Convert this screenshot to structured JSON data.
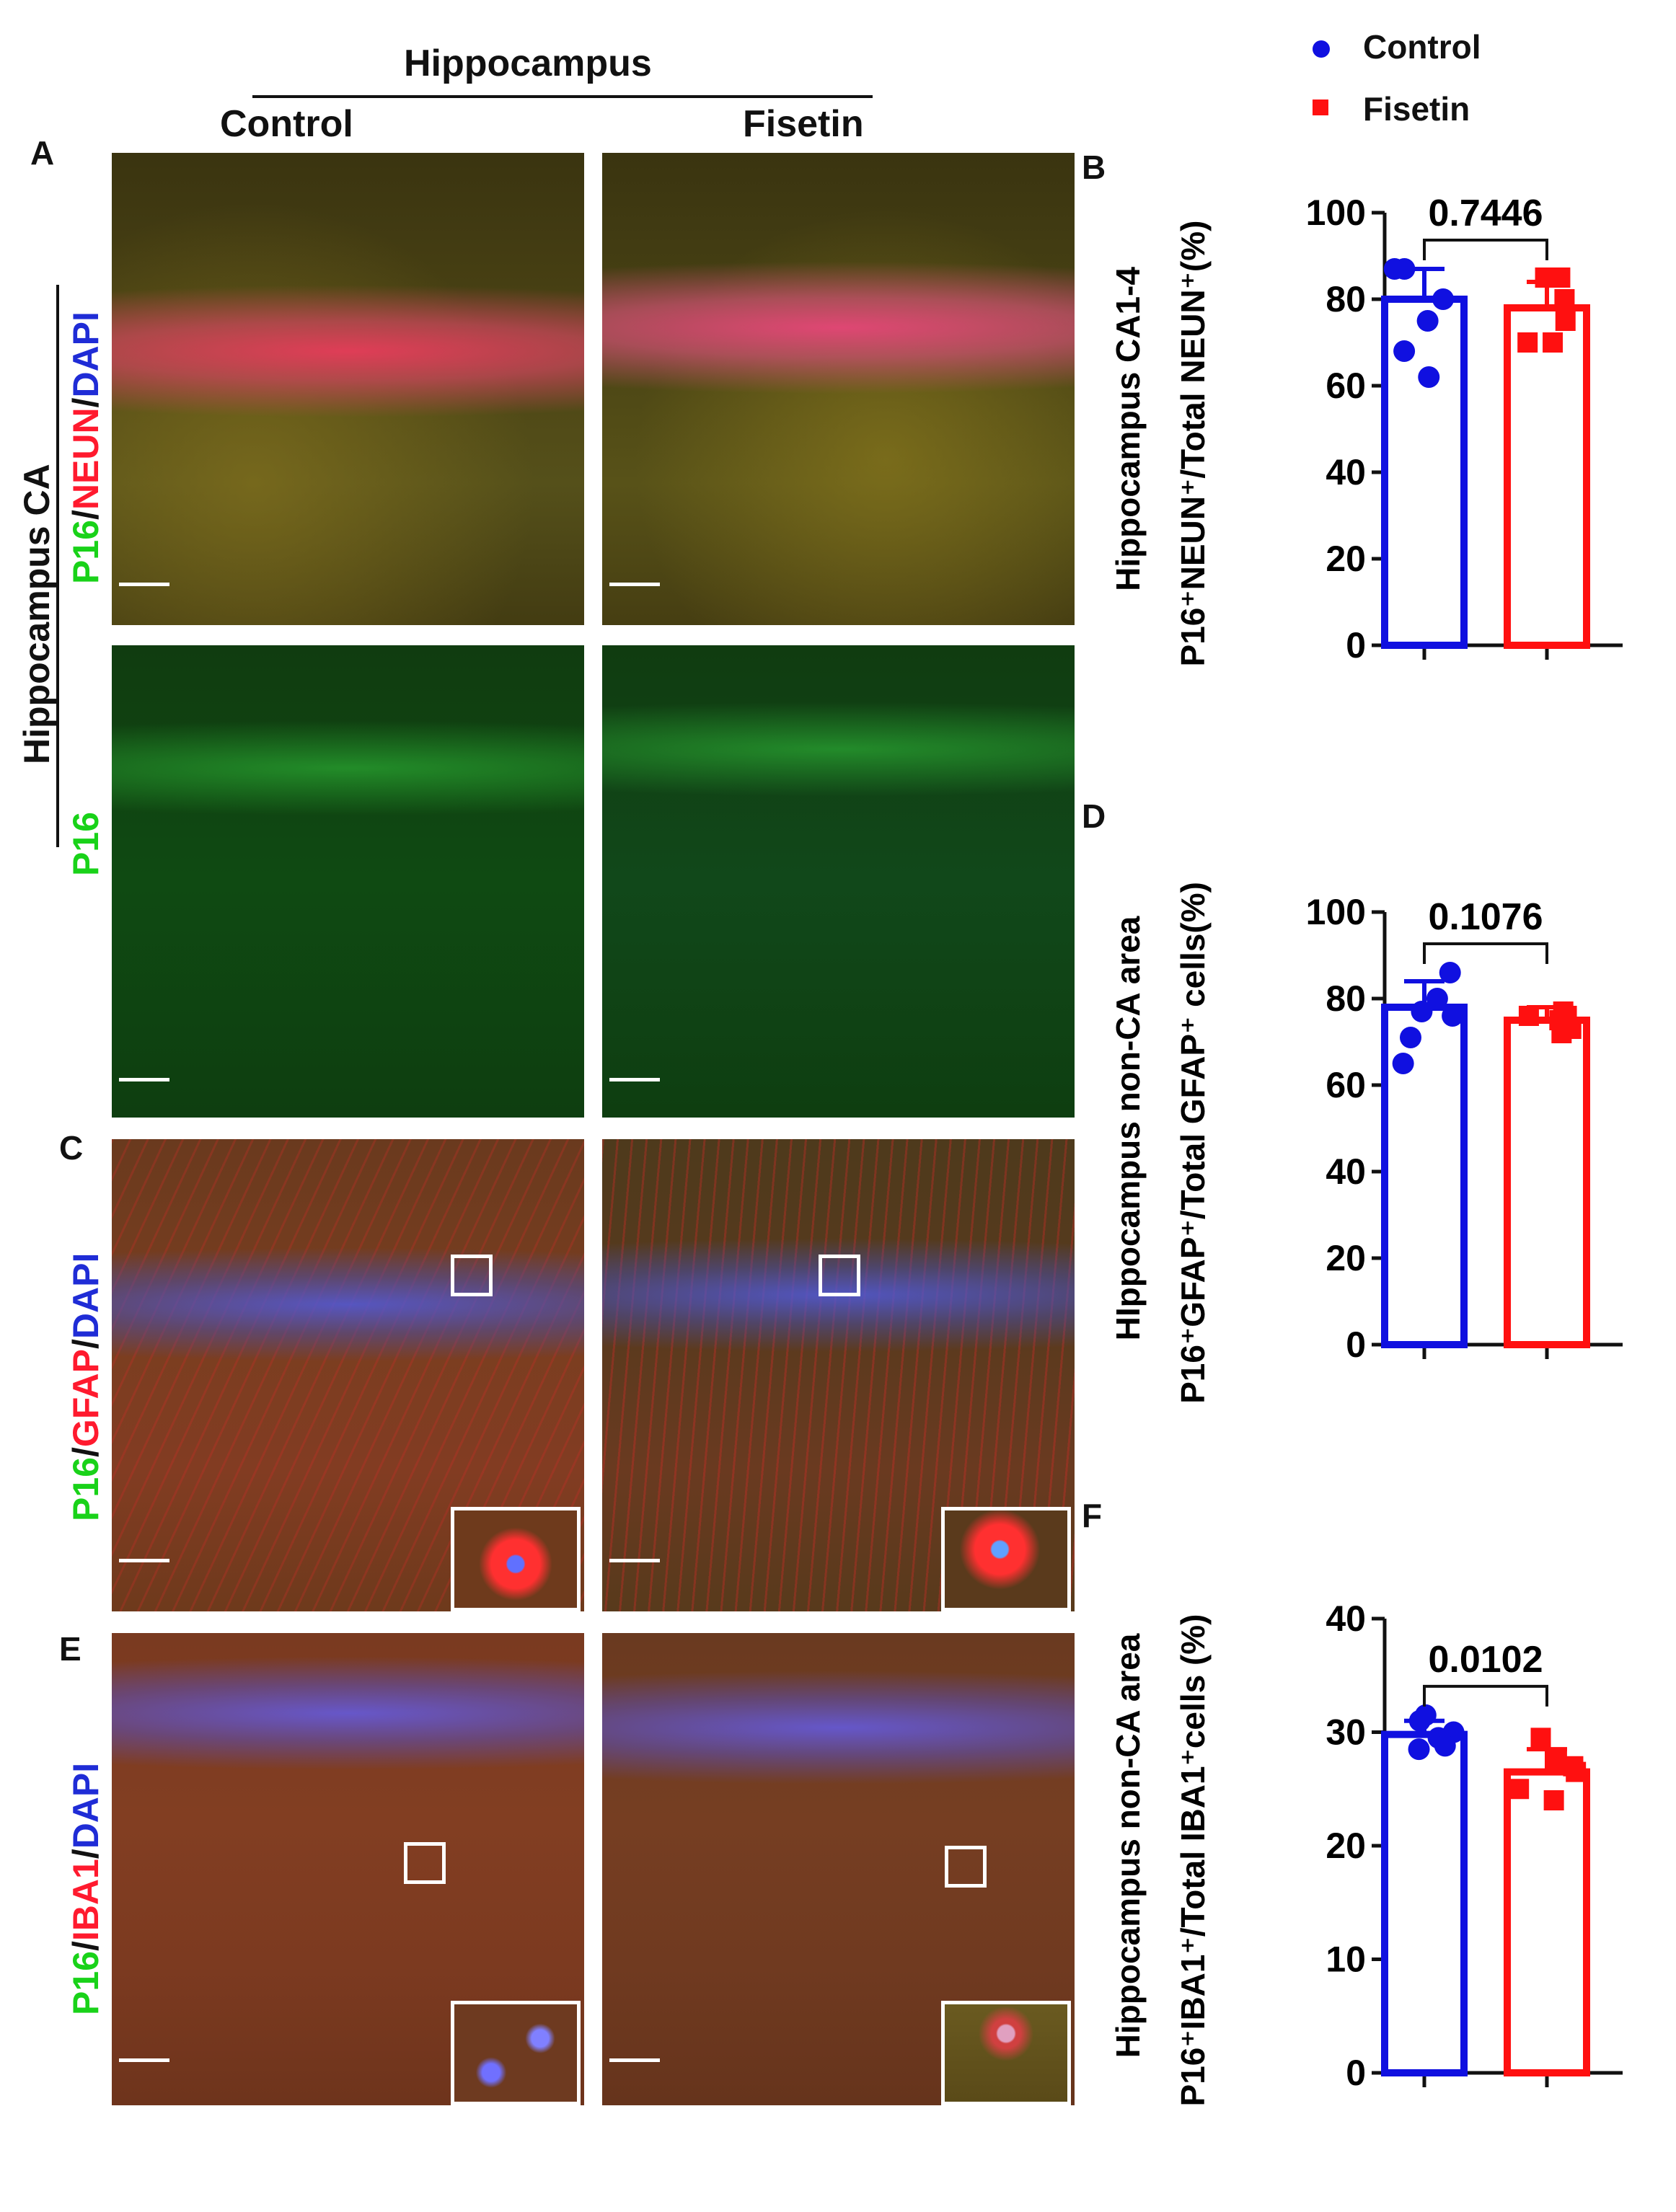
{
  "figure": {
    "region_title": "Hippocampus",
    "col_control": "Control",
    "col_fisetin": "Fisetin",
    "row_ca_label": "Hippocampus CA",
    "panel_letters": [
      "A",
      "B",
      "C",
      "D",
      "E",
      "F"
    ],
    "stain_a1": {
      "p16": "P16",
      "sep1": "/",
      "marker": "NEUN",
      "sep2": "/",
      "dapi": "DAPI"
    },
    "stain_a2": {
      "p16": "P16"
    },
    "stain_c": {
      "p16": "P16",
      "sep1": "/",
      "marker": "GFAP",
      "sep2": "/",
      "dapi": "DAPI"
    },
    "stain_e": {
      "p16": "P16",
      "sep1": "/",
      "marker": "IBA1",
      "sep2": "/",
      "dapi": "DAPI"
    }
  },
  "legend": {
    "items": [
      {
        "name": "Control",
        "color": "#1010e0",
        "marker": "circle"
      },
      {
        "name": "Fisetin",
        "color": "#ff1010",
        "marker": "square"
      }
    ]
  },
  "chart_data": [
    {
      "panel": "B",
      "type": "bar",
      "ylabel_line1": "Hippocampus CA1-4",
      "ylabel_line2": "P16⁺NEUN⁺/Total NEUN⁺(%)",
      "categories": [
        "Control",
        "Fisetin"
      ],
      "values": [
        80,
        78
      ],
      "errors": [
        7,
        6
      ],
      "points": [
        [
          87,
          87,
          80,
          75,
          68,
          62
        ],
        [
          85,
          85,
          80,
          75,
          70,
          70
        ]
      ],
      "pvalue": "0.7446",
      "ylim": [
        0,
        100
      ],
      "yticks": [
        "0",
        "20",
        "40",
        "60",
        "80",
        "100"
      ],
      "colors": [
        "#1010e0",
        "#ff1010"
      ]
    },
    {
      "panel": "D",
      "type": "bar",
      "ylabel_line1": "HIppocampus non-CA area",
      "ylabel_line2": "P16⁺GFAP⁺/Total GFAP⁺ cells(%)",
      "categories": [
        "Control",
        "Fisetin"
      ],
      "values": [
        78,
        75
      ],
      "errors": [
        6,
        3
      ],
      "points": [
        [
          86,
          80,
          77,
          76,
          71,
          65
        ],
        [
          77,
          76,
          76,
          75,
          73,
          72
        ]
      ],
      "pvalue": "0.1076",
      "ylim": [
        0,
        100
      ],
      "yticks": [
        "0",
        "20",
        "40",
        "60",
        "80",
        "100"
      ],
      "colors": [
        "#1010e0",
        "#ff1010"
      ]
    },
    {
      "panel": "F",
      "type": "bar",
      "ylabel_line1": "Hippocampus non-CA area",
      "ylabel_line2": "P16⁺IBA1⁺/Total IBA1⁺cells (%)",
      "categories": [
        "Control",
        "Fisetin"
      ],
      "values": [
        29.8,
        26.5
      ],
      "errors": [
        1.2,
        2.0
      ],
      "points": [
        [
          31.5,
          31,
          30,
          29.5,
          28.8,
          28.5
        ],
        [
          29.5,
          27.5,
          27,
          26.5,
          25,
          24
        ]
      ],
      "pvalue": "0.0102",
      "ylim": [
        0,
        40
      ],
      "yticks": [
        "0",
        "10",
        "20",
        "30",
        "40"
      ],
      "colors": [
        "#1010e0",
        "#ff1010"
      ]
    }
  ]
}
